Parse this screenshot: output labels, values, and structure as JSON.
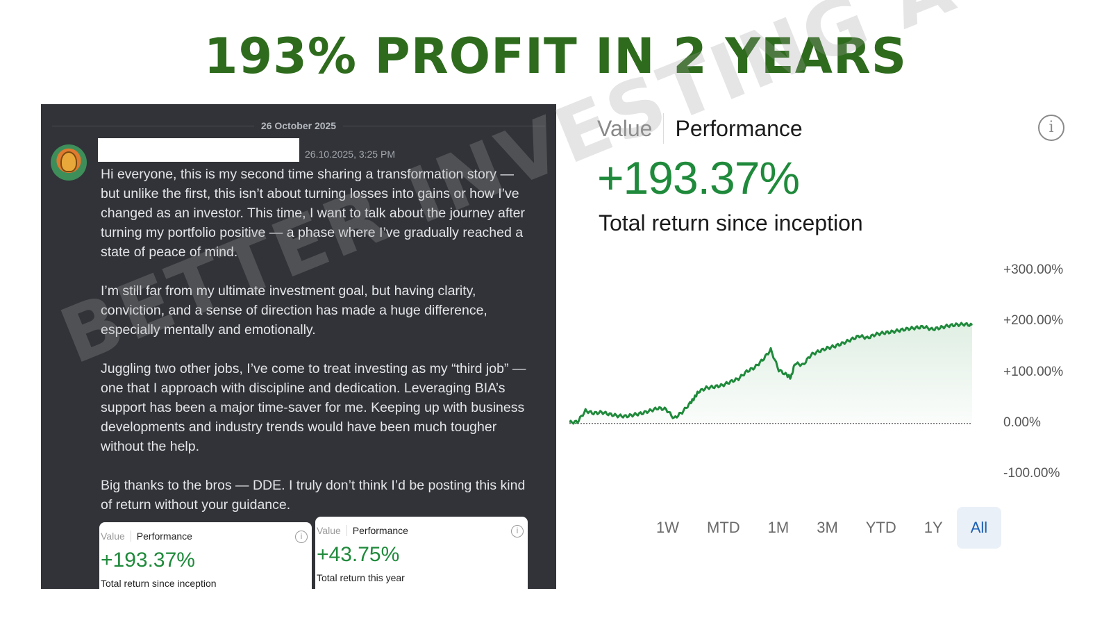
{
  "headline": "193% PROFIT IN 2 YEARS",
  "chat": {
    "date": "26 October 2025",
    "timestamp": "26.10.2025, 3:25 PM",
    "paragraphs": [
      "Hi everyone, this is my second time sharing a transformation story — but unlike the first, this isn’t about turning losses into gains or how I’ve changed as an investor. This time, I want to talk about the journey after turning my portfolio positive — a phase where I’ve gradually reached a state of peace of mind.",
      "I’m still far from my ultimate investment goal, but having clarity, conviction, and a sense of direction has made a huge difference, especially mentally and emotionally.",
      "Juggling two other jobs, I’ve come to treat investing as my “third job” — one that I approach with discipline and dedication. Leveraging BIA’s support has been a major time-saver for me. Keeping up with business developments and industry trends would have been much tougher without the help.",
      "Big thanks to the bros — DDE. I truly don’t think I’d be posting this kind of return without your guidance."
    ],
    "cards": [
      {
        "tab_value": "Value",
        "tab_performance": "Performance",
        "info": "i",
        "value": "+193.37%",
        "label": "Total return since inception"
      },
      {
        "tab_value": "Value",
        "tab_performance": "Performance",
        "info": "i",
        "value": "+43.75%",
        "label": "Total return this year"
      }
    ]
  },
  "performance": {
    "tab_value": "Value",
    "tab_performance": "Performance",
    "info": "i",
    "total_return": "+193.37%",
    "total_return_label": "Total return since inception",
    "ranges": [
      "1W",
      "MTD",
      "1M",
      "3M",
      "YTD",
      "1Y",
      "All"
    ],
    "active_range": "All"
  },
  "watermark": "BETTER INVESTING ACADEMY",
  "colors": {
    "green": "#1f8a3b",
    "headline_green": "#2e6b1d",
    "chat_bg": "#313338",
    "active_range": "#1a5fb4"
  },
  "chart_data": {
    "type": "area",
    "ytick_labels": [
      "+300.00%",
      "+200.00%",
      "+100.00%",
      "0.00%",
      "-100.00%"
    ],
    "ylim": [
      -100,
      300
    ],
    "baseline": 0,
    "x": [
      0,
      2,
      4,
      6,
      8,
      10,
      12,
      14,
      16,
      18,
      20,
      22,
      24,
      26,
      28,
      30,
      31,
      32,
      34,
      36,
      38,
      40,
      42,
      44,
      46,
      48,
      50,
      52,
      54,
      55,
      56,
      58,
      60,
      62,
      64,
      66,
      68,
      70,
      72,
      74,
      76,
      78,
      80,
      82,
      84,
      86,
      88,
      90,
      92,
      94,
      96,
      98,
      100
    ],
    "values": [
      2,
      3,
      25,
      20,
      22,
      18,
      15,
      14,
      17,
      20,
      25,
      30,
      28,
      10,
      22,
      40,
      50,
      62,
      70,
      72,
      75,
      82,
      88,
      102,
      110,
      125,
      145,
      105,
      95,
      90,
      118,
      115,
      135,
      142,
      148,
      152,
      158,
      165,
      172,
      168,
      175,
      178,
      180,
      183,
      186,
      188,
      190,
      185,
      188,
      192,
      194,
      195,
      193.37
    ]
  }
}
